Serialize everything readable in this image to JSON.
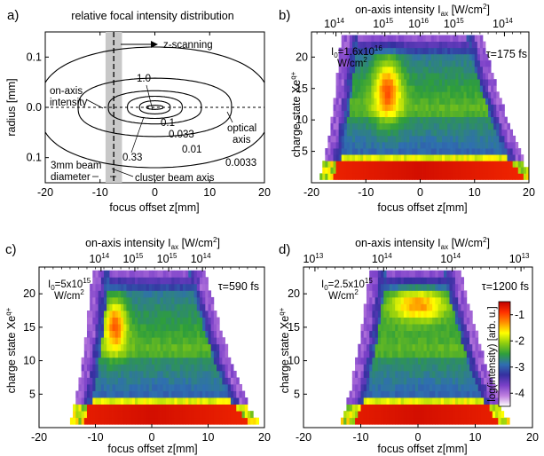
{
  "figure": {
    "panels": [
      {
        "id": "a",
        "label": "a)",
        "title": "relative focal intensity distribution",
        "xlabel": "focus offset z[mm]",
        "ylabel": "radius [mm]",
        "xticks": [
          "-20",
          "-10",
          "0",
          "10",
          "20"
        ],
        "yticks": [
          "0.1",
          "0.0",
          "0.1"
        ],
        "annotations": {
          "z_scanning": "z-scanning",
          "on_axis_l1": "on-axis",
          "on_axis_l2": "intensity",
          "optical_l1": "optical",
          "optical_l2": "axis",
          "beam_l1": "3mm beam",
          "beam_l2": "diameter",
          "cluster": "cluster beam axis"
        },
        "contour_levels": [
          "1.0",
          "0.1",
          "0.033",
          "0.01",
          "0.0033",
          "0.33"
        ]
      },
      {
        "id": "b",
        "label": "b)",
        "top_title": "on-axis intensity I",
        "top_title_sub": "ax",
        "top_title_unit": " [W/cm",
        "top_title_unit_sup": "2",
        "top_title_end": "]",
        "top_ticks": [
          {
            "base": "10",
            "exp": "14"
          },
          {
            "base": "10",
            "exp": "15"
          },
          {
            "base": "10",
            "exp": "16"
          },
          {
            "base": "10",
            "exp": "15"
          },
          {
            "base": "10",
            "exp": "14"
          }
        ],
        "i0_base": "I",
        "i0_sub": "0",
        "i0_value": "=1.6x10",
        "i0_exp": "16",
        "i0_unit": "W/cm",
        "i0_unit_sup": "2",
        "tau": "τ=175 fs",
        "ylabel": "charge state Xe",
        "ylabel_sup": "q+",
        "xlabel": "focus offset z[mm]",
        "xticks": [
          "-20",
          "-10",
          "0",
          "10",
          "20"
        ],
        "yticks": [
          "5",
          "10",
          "15",
          "20"
        ]
      },
      {
        "id": "c",
        "label": "c)",
        "top_title": "on-axis intensity I",
        "top_title_sub": "ax",
        "top_title_unit": " [W/cm",
        "top_title_unit_sup": "2",
        "top_title_end": "]",
        "top_ticks": [
          {
            "base": "10",
            "exp": "14"
          },
          {
            "base": "10",
            "exp": "15"
          },
          {
            "base": "10",
            "exp": "15"
          },
          {
            "base": "10",
            "exp": "14"
          }
        ],
        "i0_base": "I",
        "i0_sub": "0",
        "i0_value": "=5x10",
        "i0_exp": "15",
        "i0_unit": "W/cm",
        "i0_unit_sup": "2",
        "tau": "τ=590 fs",
        "ylabel": "charge state Xe",
        "ylabel_sup": "q+",
        "xlabel": "focus offset z[mm]",
        "xticks": [
          "-20",
          "-10",
          "0",
          "10",
          "20"
        ],
        "yticks": [
          "5",
          "10",
          "15",
          "20"
        ]
      },
      {
        "id": "d",
        "label": "d)",
        "top_title": "on-axis intensity I",
        "top_title_sub": "ax",
        "top_title_unit": " [W/cm",
        "top_title_unit_sup": "2",
        "top_title_end": "]",
        "top_ticks": [
          {
            "base": "10",
            "exp": "13"
          },
          {
            "base": "10",
            "exp": "14"
          },
          {
            "base": "10",
            "exp": "14"
          },
          {
            "base": "10",
            "exp": "13"
          }
        ],
        "i0_base": "I",
        "i0_sub": "0",
        "i0_value": "=2.5x10",
        "i0_exp": "15",
        "i0_unit": "W/cm",
        "i0_unit_sup": "2",
        "tau": "τ=1200 fs",
        "ylabel": "charge state Xe",
        "ylabel_sup": "q+",
        "xlabel": "focus offset z[mm]",
        "xticks": [
          "-20",
          "-10",
          "0",
          "10",
          "20"
        ],
        "yticks": [
          "5",
          "10",
          "15",
          "20"
        ],
        "colorbar": {
          "label": "log(intensity) [arb. u.]",
          "ticks": [
            "-1",
            "-2",
            "-3",
            "-4"
          ],
          "stops": [
            "#c00000",
            "#ff3000",
            "#ff9000",
            "#ffff00",
            "#8ccc10",
            "#2e9e3c",
            "#2f6fb0",
            "#3530a0",
            "#7a40c8",
            "#c080e0",
            "#ffffff"
          ]
        }
      }
    ]
  },
  "chart_data": [
    {
      "type": "line",
      "panel": "a",
      "title": "relative focal intensity distribution",
      "xlabel": "focus offset z[mm]",
      "ylabel": "radius [mm]",
      "xlim": [
        -20,
        20
      ],
      "ylim": [
        -0.15,
        0.15
      ],
      "series": [
        {
          "name": "1.0",
          "zmax": 1.5,
          "rmax": 0.004
        },
        {
          "name": "0.33",
          "zmax": 2.8,
          "rmax": 0.013
        },
        {
          "name": "0.1",
          "zmax": 5.0,
          "rmax": 0.022
        },
        {
          "name": "0.033",
          "zmax": 8.5,
          "rmax": 0.033
        },
        {
          "name": "0.01",
          "zmax": 14.0,
          "rmax": 0.058
        },
        {
          "name": "0.0033",
          "zmax": 21.0,
          "rmax": 0.12
        }
      ],
      "cluster_beam_z": -7.5,
      "cluster_beam_width": 3,
      "notes": {
        "z_scanning_direction": "positive z"
      }
    },
    {
      "type": "heatmap",
      "panel": "b",
      "xlim": [
        -20,
        20
      ],
      "ylim": [
        0,
        24
      ],
      "q_range": [
        1,
        23
      ],
      "series": [
        {
          "name": "envelope",
          "x_start_low": -17,
          "x_end_low": 20,
          "x_start_high": -13,
          "x_end_high": 10,
          "q_top": 23
        }
      ],
      "hot_region": {
        "z_center": -6,
        "q_center": 15,
        "q_halfwidth": 5,
        "z_halfwidth": 2.5
      },
      "peak_floor_q": [
        1,
        3
      ]
    },
    {
      "type": "heatmap",
      "panel": "c",
      "xlim": [
        -20,
        20
      ],
      "ylim": [
        0,
        24
      ],
      "q_range": [
        1,
        23
      ],
      "series": [
        {
          "name": "envelope",
          "x_start_low": -13,
          "x_end_low": 18,
          "x_start_high": -9,
          "x_end_high": 8,
          "q_top": 23
        }
      ],
      "hot_region": {
        "z_center": -6.5,
        "q_center": 15.5,
        "q_halfwidth": 4,
        "z_halfwidth": 2
      },
      "peak_floor_q": [
        1,
        3
      ]
    },
    {
      "type": "heatmap",
      "panel": "d",
      "xlim": [
        -20,
        20
      ],
      "ylim": [
        0,
        24
      ],
      "q_range": [
        1,
        23
      ],
      "series": [
        {
          "name": "envelope",
          "x_start_low": -12,
          "x_end_low": 15,
          "x_start_high": -7,
          "x_end_high": 6,
          "q_top": 23
        }
      ],
      "hot_region": {
        "z_center": 0,
        "q_center": 18.5,
        "q_halfwidth": 2.5,
        "z_halfwidth": 5.5
      },
      "peak_floor_q": [
        1,
        3
      ],
      "colorbar_range": [
        -4.5,
        -0.5
      ]
    }
  ]
}
